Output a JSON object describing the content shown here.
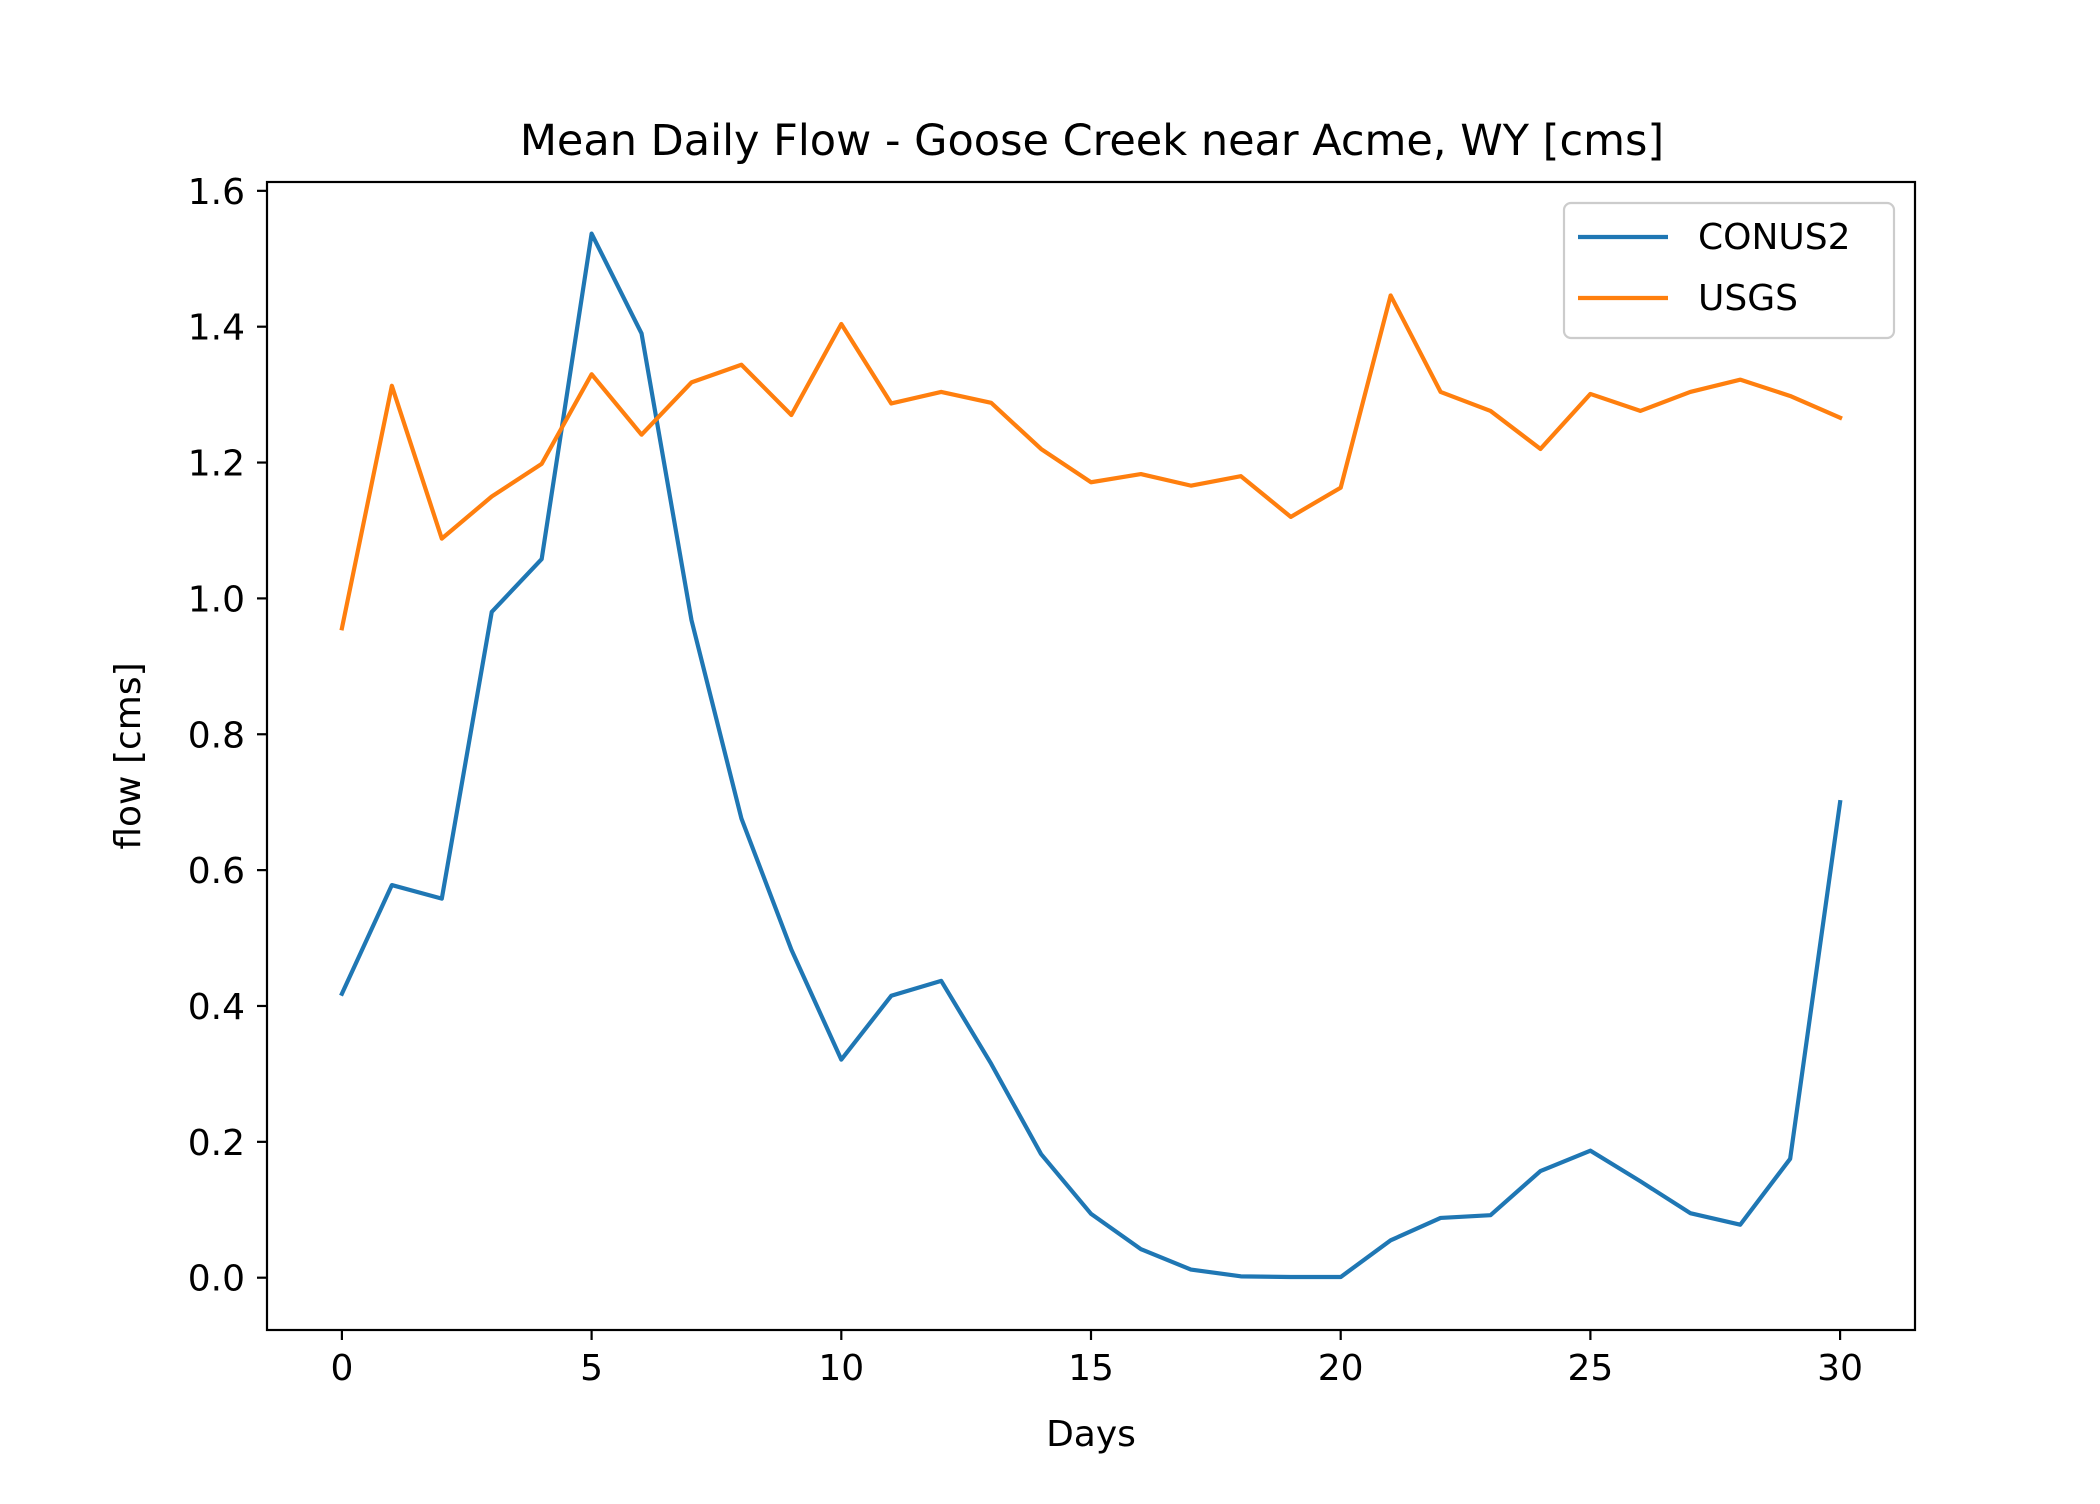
{
  "chart_data": {
    "type": "line",
    "title": "Mean Daily Flow - Goose Creek near Acme, WY [cms]",
    "xlabel": "Days",
    "ylabel": "flow [cms]",
    "xlim": [
      -1.5,
      31.5
    ],
    "ylim": [
      -0.077,
      1.613
    ],
    "xticks": [
      0,
      5,
      10,
      15,
      20,
      25,
      30
    ],
    "xtick_labels": [
      "0",
      "5",
      "10",
      "15",
      "20",
      "25",
      "30"
    ],
    "yticks": [
      0.0,
      0.2,
      0.4,
      0.6,
      0.8,
      1.0,
      1.2,
      1.4,
      1.6
    ],
    "ytick_labels": [
      "0.0",
      "0.2",
      "0.4",
      "0.6",
      "0.8",
      "1.0",
      "1.2",
      "1.4",
      "1.6"
    ],
    "grid": false,
    "legend_position": "top-right",
    "x": [
      0,
      1,
      2,
      3,
      4,
      5,
      6,
      7,
      8,
      9,
      10,
      11,
      12,
      13,
      14,
      15,
      16,
      17,
      18,
      19,
      20,
      21,
      22,
      23,
      24,
      25,
      26,
      27,
      28,
      29,
      30
    ],
    "series": [
      {
        "name": "CONUS2",
        "color": "#1f77b4",
        "values": [
          0.418,
          0.578,
          0.558,
          0.98,
          1.058,
          1.537,
          1.39,
          0.968,
          0.676,
          0.483,
          0.321,
          0.415,
          0.437,
          0.315,
          0.182,
          0.094,
          0.042,
          0.012,
          0.002,
          0.001,
          0.001,
          0.055,
          0.088,
          0.092,
          0.157,
          0.187,
          0.142,
          0.095,
          0.078,
          0.175,
          0.7
        ]
      },
      {
        "name": "USGS",
        "color": "#ff7f0e",
        "values": [
          0.956,
          1.313,
          1.088,
          1.15,
          1.198,
          1.33,
          1.241,
          1.318,
          1.344,
          1.27,
          1.404,
          1.287,
          1.304,
          1.288,
          1.22,
          1.171,
          1.183,
          1.166,
          1.18,
          1.12,
          1.163,
          1.446,
          1.304,
          1.276,
          1.22,
          1.301,
          1.276,
          1.304,
          1.322,
          1.298,
          1.266
        ]
      }
    ]
  }
}
